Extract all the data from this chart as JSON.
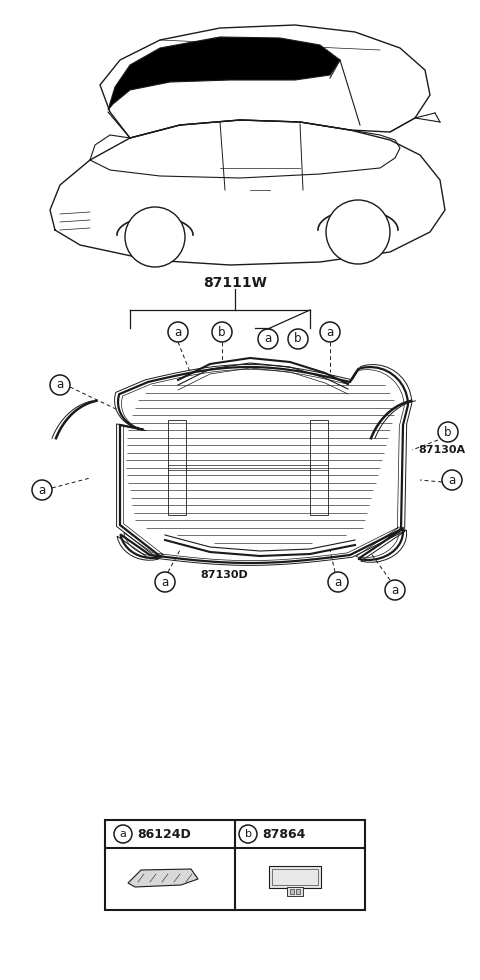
{
  "bg_color": "#ffffff",
  "line_color": "#1a1a1a",
  "part_87111W": "87111W",
  "part_87130A": "87130A",
  "part_87130D": "87130D",
  "legend_a_code": "86124D",
  "legend_b_code": "87864"
}
